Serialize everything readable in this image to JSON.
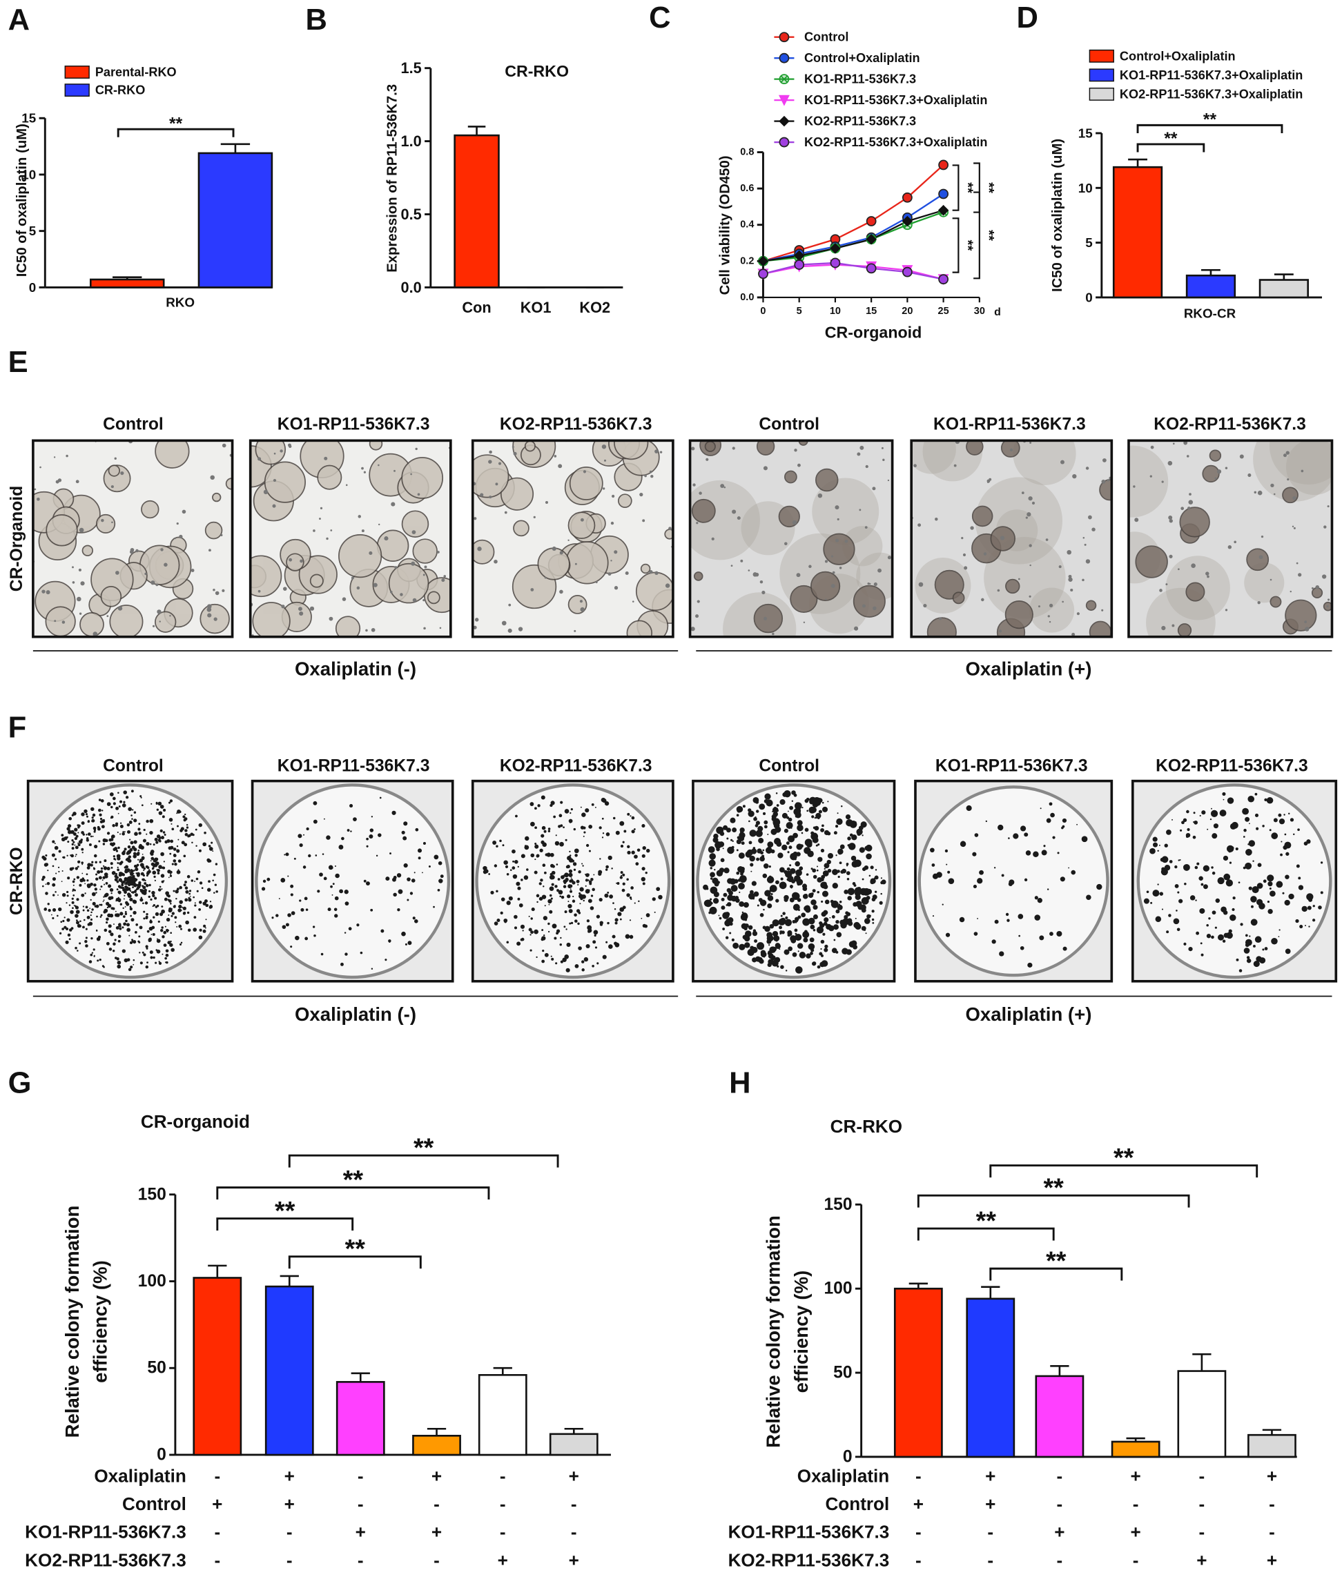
{
  "chart_data": [
    {
      "type": "bar",
      "panel": "A",
      "ylabel": "IC50 of oxaliplatin (uM)",
      "categories": [
        "RKO"
      ],
      "series": [
        {
          "name": "Parental-RKO",
          "color": "#ff2a00",
          "values": [
            0.7
          ],
          "errors": [
            0.2
          ]
        },
        {
          "name": "CR-RKO",
          "color": "#2b3aff",
          "values": [
            11.9
          ],
          "errors": [
            0.8
          ]
        }
      ],
      "ylim": [
        0,
        15
      ],
      "yticks": [
        0,
        5,
        10,
        15
      ],
      "significance": [
        "**"
      ]
    },
    {
      "type": "bar",
      "panel": "B",
      "title": "CR-RKO",
      "ylabel": "Expression of RP11-536K7.3",
      "categories": [
        "Con",
        "KO1",
        "KO2"
      ],
      "values": [
        1.04,
        0,
        0
      ],
      "errors": [
        0.06,
        0,
        0
      ],
      "colors": [
        "#ff2a00",
        "#ff2a00",
        "#ff2a00"
      ],
      "ylim": [
        0,
        1.5
      ],
      "yticks": [
        {
          "value": 0,
          "label": "0.0"
        },
        0.5,
        {
          "value": 1,
          "label": "1.0"
        },
        1.5
      ]
    },
    {
      "type": "line",
      "panel": "C",
      "xlabel": "CR-organoid",
      "xlabel_unit": "d",
      "ylabel": "Cell viability (OD450)",
      "x": [
        0,
        5,
        10,
        15,
        20,
        25
      ],
      "xlim": [
        0,
        30
      ],
      "xticks": [
        0,
        5,
        10,
        15,
        20,
        25,
        30
      ],
      "ylim": [
        0,
        0.8
      ],
      "yticks": [
        {
          "value": 0,
          "label": "0.0"
        },
        0.2,
        0.4,
        0.6,
        0.8
      ],
      "series": [
        {
          "name": "Control",
          "color": "#e8251a",
          "marker": "circle",
          "values": [
            0.2,
            0.26,
            0.32,
            0.42,
            0.55,
            0.73
          ]
        },
        {
          "name": "Control+Oxaliplatin",
          "color": "#1f4fe0",
          "marker": "circle",
          "values": [
            0.2,
            0.24,
            0.28,
            0.33,
            0.44,
            0.57
          ]
        },
        {
          "name": "KO1-RP11-536K7.3",
          "color": "#1e9e2e",
          "marker": "circle-x",
          "values": [
            0.2,
            0.22,
            0.27,
            0.32,
            0.4,
            0.47
          ]
        },
        {
          "name": "KO1-RP11-536K7.3+Oxaliplatin",
          "color": "#f03cf0",
          "marker": "triangle-down",
          "values": [
            0.13,
            0.17,
            0.18,
            0.17,
            0.15,
            0.1
          ]
        },
        {
          "name": "KO2-RP11-536K7.3",
          "color": "#111111",
          "marker": "diamond",
          "values": [
            0.2,
            0.23,
            0.27,
            0.32,
            0.42,
            0.48
          ]
        },
        {
          "name": "KO2-RP11-536K7.3+Oxaliplatin",
          "color": "#a040e0",
          "marker": "circle",
          "values": [
            0.13,
            0.18,
            0.19,
            0.16,
            0.14,
            0.1
          ]
        }
      ],
      "significance": [
        "**",
        "**",
        "**",
        "**"
      ]
    },
    {
      "type": "bar",
      "panel": "D",
      "ylabel": "IC50 of oxaliplatin (uM)",
      "categories": [
        "RKO-CR"
      ],
      "series": [
        {
          "name": "Control+Oxaliplatin",
          "color": "#ff2a00",
          "values": [
            11.9
          ],
          "errors": [
            0.7
          ]
        },
        {
          "name": "KO1-RP11-536K7.3+Oxaliplatin",
          "color": "#2b3aff",
          "values": [
            2.0
          ],
          "errors": [
            0.5
          ]
        },
        {
          "name": "KO2-RP11-536K7.3+Oxaliplatin",
          "color": "#d9d9d9",
          "values": [
            1.6
          ],
          "errors": [
            0.5
          ]
        }
      ],
      "ylim": [
        0,
        15
      ],
      "yticks": [
        0,
        5,
        10,
        15
      ],
      "significance": [
        "**",
        "**"
      ]
    },
    {
      "type": "bar",
      "panel": "G",
      "title": "CR-organoid",
      "ylabel": [
        "Relative colony formation",
        "efficiency (%)"
      ],
      "values": [
        102,
        97,
        42,
        11,
        46,
        12
      ],
      "errors": [
        7,
        6,
        5,
        4,
        4,
        3
      ],
      "colors": [
        "#ff2a00",
        "#1f3aff",
        "#ff40ff",
        "#ff9900",
        "#ffffff",
        "#d9d9d9"
      ],
      "ylim": [
        0,
        150
      ],
      "yticks": [
        0,
        50,
        100,
        150
      ],
      "conditions": [
        {
          "label": "Oxaliplatin",
          "values": [
            "-",
            "+",
            "-",
            "+",
            "-",
            "+"
          ]
        },
        {
          "label": "Control",
          "values": [
            "+",
            "+",
            "-",
            "-",
            "-",
            "-"
          ]
        },
        {
          "label": "KO1-RP11-536K7.3",
          "values": [
            "-",
            "-",
            "+",
            "+",
            "-",
            "-"
          ]
        },
        {
          "label": "KO2-RP11-536K7.3",
          "values": [
            "-",
            "-",
            "-",
            "-",
            "+",
            "+"
          ]
        }
      ],
      "significance": [
        "**",
        "**",
        "**",
        "**"
      ]
    },
    {
      "type": "bar",
      "panel": "H",
      "title": "CR-RKO",
      "ylabel": [
        "Relative colony formation",
        "efficiency (%)"
      ],
      "values": [
        100,
        94,
        48,
        9,
        51,
        13
      ],
      "errors": [
        3,
        7,
        6,
        2,
        10,
        3
      ],
      "colors": [
        "#ff2a00",
        "#1f3aff",
        "#ff40ff",
        "#ff9900",
        "#ffffff",
        "#d9d9d9"
      ],
      "ylim": [
        0,
        150
      ],
      "yticks": [
        0,
        50,
        100,
        150
      ],
      "conditions": [
        {
          "label": "Oxaliplatin",
          "values": [
            "-",
            "+",
            "-",
            "+",
            "-",
            "+"
          ]
        },
        {
          "label": "Control",
          "values": [
            "+",
            "+",
            "-",
            "-",
            "-",
            "-"
          ]
        },
        {
          "label": "KO1-RP11-536K7.3",
          "values": [
            "-",
            "-",
            "+",
            "+",
            "-",
            "-"
          ]
        },
        {
          "label": "KO2-RP11-536K7.3",
          "values": [
            "-",
            "-",
            "-",
            "-",
            "+",
            "+"
          ]
        }
      ],
      "significance": [
        "**",
        "**",
        "**",
        "**"
      ]
    }
  ],
  "image_panels": [
    {
      "panel": "E",
      "row_label": "CR-Organoid",
      "columns": [
        "Control",
        "KO1-RP11-536K7.3",
        "KO2-RP11-536K7.3",
        "Control",
        "KO1-RP11-536K7.3",
        "KO2-RP11-536K7.3"
      ],
      "groups": [
        "Oxaliplatin (-)",
        "Oxaliplatin (+)"
      ]
    },
    {
      "panel": "F",
      "row_label": "CR-RKO",
      "columns": [
        "Control",
        "KO1-RP11-536K7.3",
        "KO2-RP11-536K7.3",
        "Control",
        "KO1-RP11-536K7.3",
        "KO2-RP11-536K7.3"
      ],
      "groups": [
        "Oxaliplatin (-)",
        "Oxaliplatin (+)"
      ]
    }
  ]
}
